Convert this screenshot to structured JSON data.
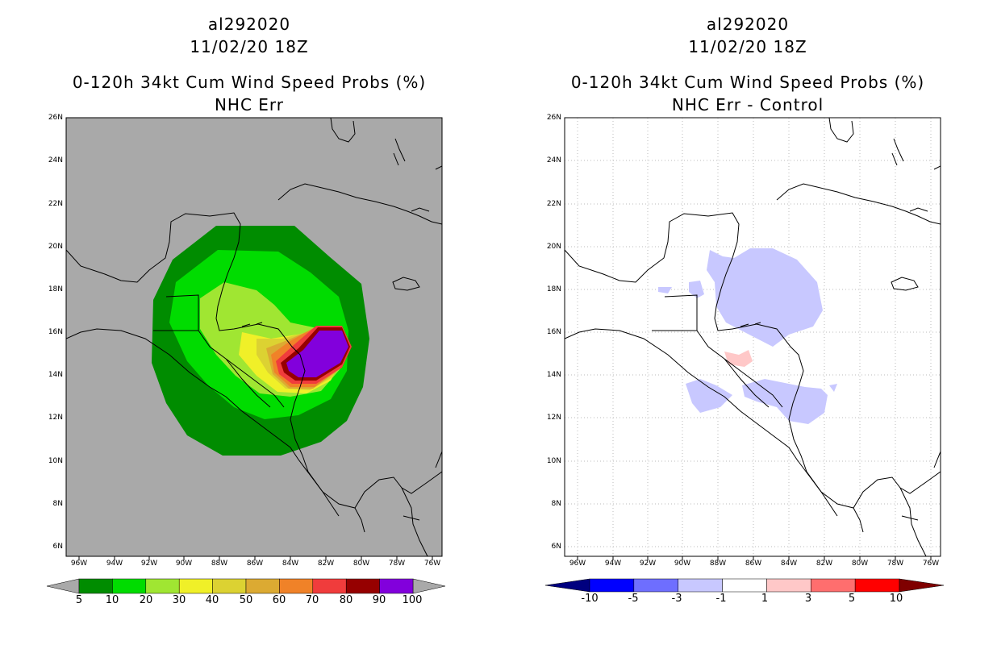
{
  "left_panel": {
    "storm_id": "al292020",
    "datetime": "11/02/20 18Z",
    "product": "0-120h 34kt Cum Wind Speed Probs (%)",
    "subtitle": "NHC Err",
    "background_color": "#a9a9a9",
    "colorbar": {
      "colors": [
        "#008c00",
        "#00dc00",
        "#a0e632",
        "#f0f028",
        "#dcd232",
        "#dcaa32",
        "#f08228",
        "#f03c3c",
        "#960000",
        "#8200dc"
      ],
      "labels": [
        "5",
        "10",
        "20",
        "30",
        "40",
        "50",
        "60",
        "70",
        "80",
        "90",
        "100"
      ]
    }
  },
  "right_panel": {
    "storm_id": "al292020",
    "datetime": "11/02/20 18Z",
    "product": "0-120h 34kt Cum Wind Speed Probs (%)",
    "subtitle": "NHC Err - Control",
    "background_color": "#ffffff",
    "colorbar": {
      "colors": [
        "#00007f",
        "#0000ff",
        "#6e6eff",
        "#c8c8ff",
        "#ffffff",
        "#ffc8c8",
        "#ff6e6e",
        "#ff0000",
        "#7f0000"
      ],
      "labels": [
        "-10",
        "-5",
        "-3",
        "-1",
        "1",
        "3",
        "5",
        "10"
      ]
    }
  },
  "axes": {
    "lat_labels": [
      "26N",
      "24N",
      "22N",
      "20N",
      "18N",
      "16N",
      "14N",
      "12N",
      "10N",
      "8N",
      "6N"
    ],
    "lon_labels": [
      "96W",
      "94W",
      "92W",
      "90W",
      "88W",
      "86W",
      "84W",
      "82W",
      "80W",
      "78W",
      "76W"
    ]
  }
}
